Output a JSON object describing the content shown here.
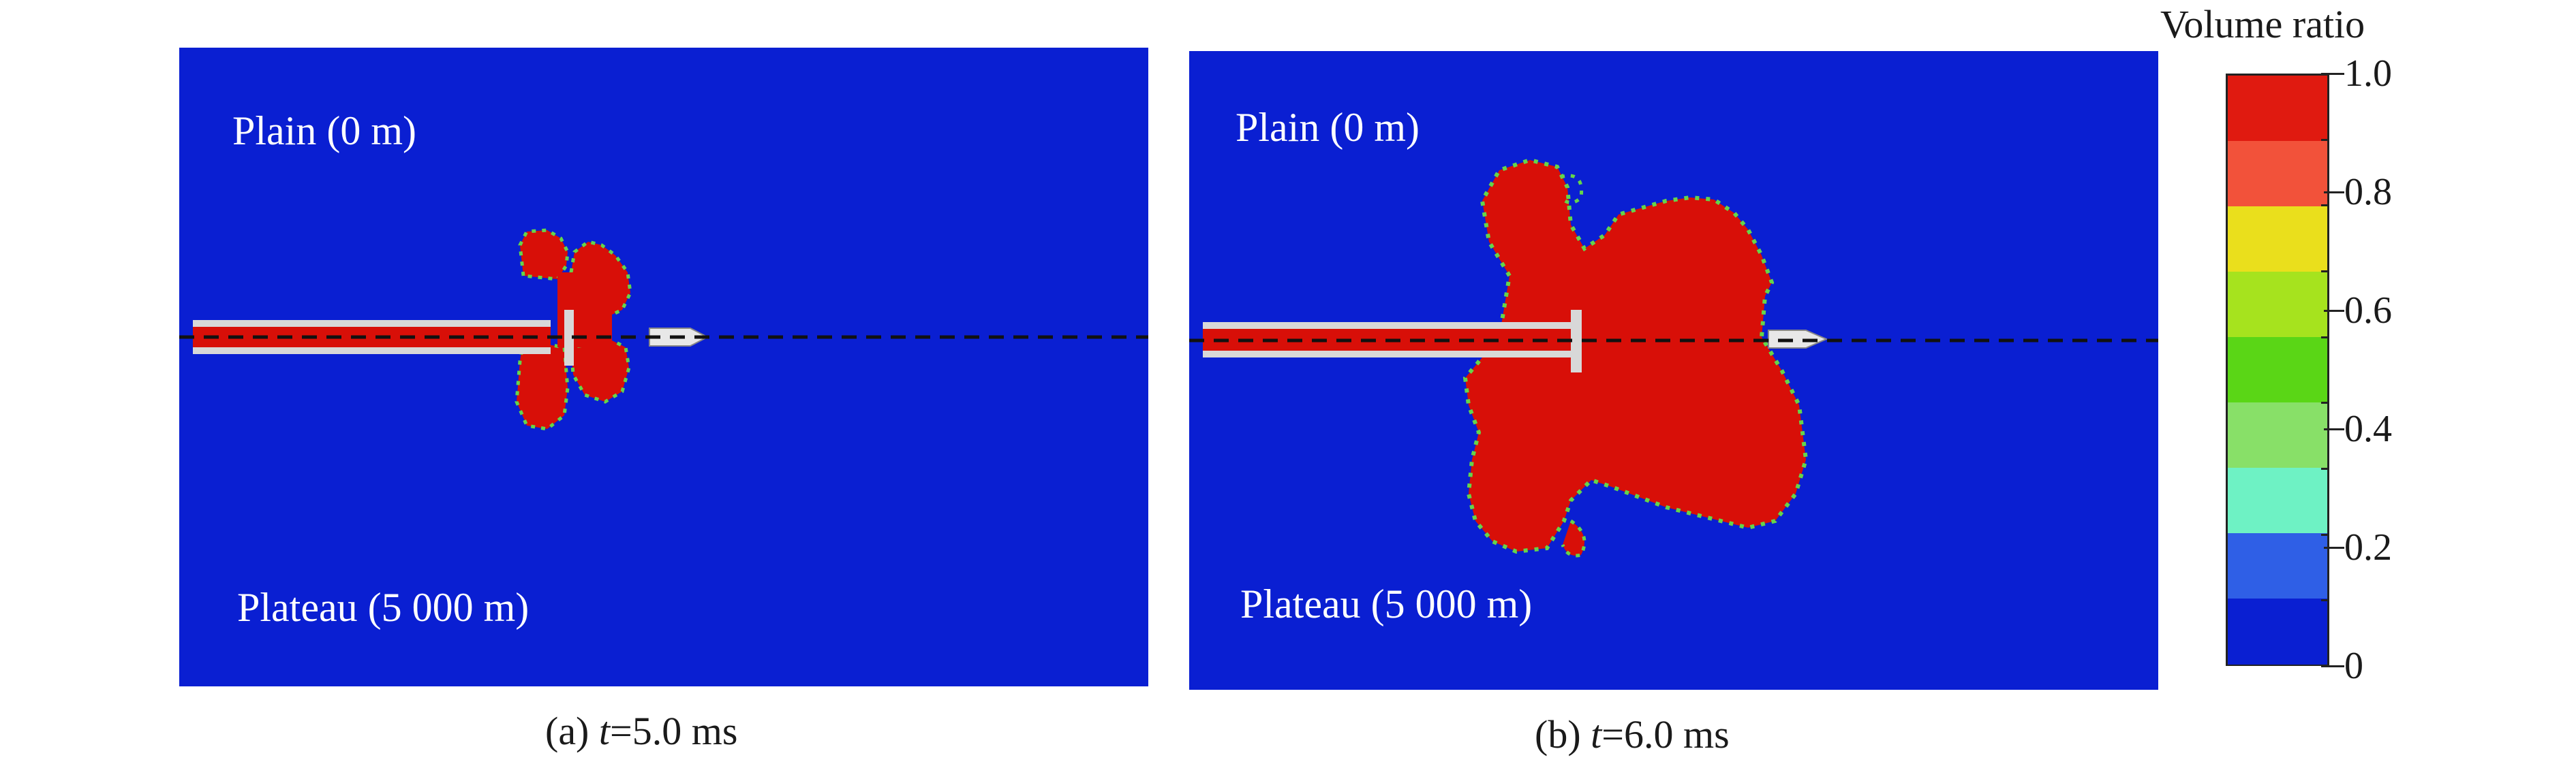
{
  "panels": [
    {
      "top_label": "Plain (0 m)",
      "bottom_label": "Plateau (5 000 m)",
      "caption_prefix": "(a) ",
      "caption_var": "t",
      "caption_value": "=5.0 ms"
    },
    {
      "top_label": "Plain (0 m)",
      "bottom_label": "Plateau (5 000 m)",
      "caption_prefix": "(b) ",
      "caption_var": "t",
      "caption_value": "=6.0 ms"
    }
  ],
  "legend": {
    "title": "Volume ratio",
    "tick_labels": [
      "1.0",
      "0.8",
      "0.6",
      "0.4",
      "0.2",
      "0"
    ],
    "band_colors": [
      "#e01a10",
      "#f2523a",
      "#eadf1c",
      "#a6e31e",
      "#5ad616",
      "#88e068",
      "#6ef2c4",
      "#2f5fe6",
      "#0a1fd2"
    ]
  },
  "colors": {
    "background_field": "#0a1fd2",
    "expanded_region": "#d80f08",
    "edge_green": "#64d54a",
    "structure": "#d8d8d8"
  }
}
